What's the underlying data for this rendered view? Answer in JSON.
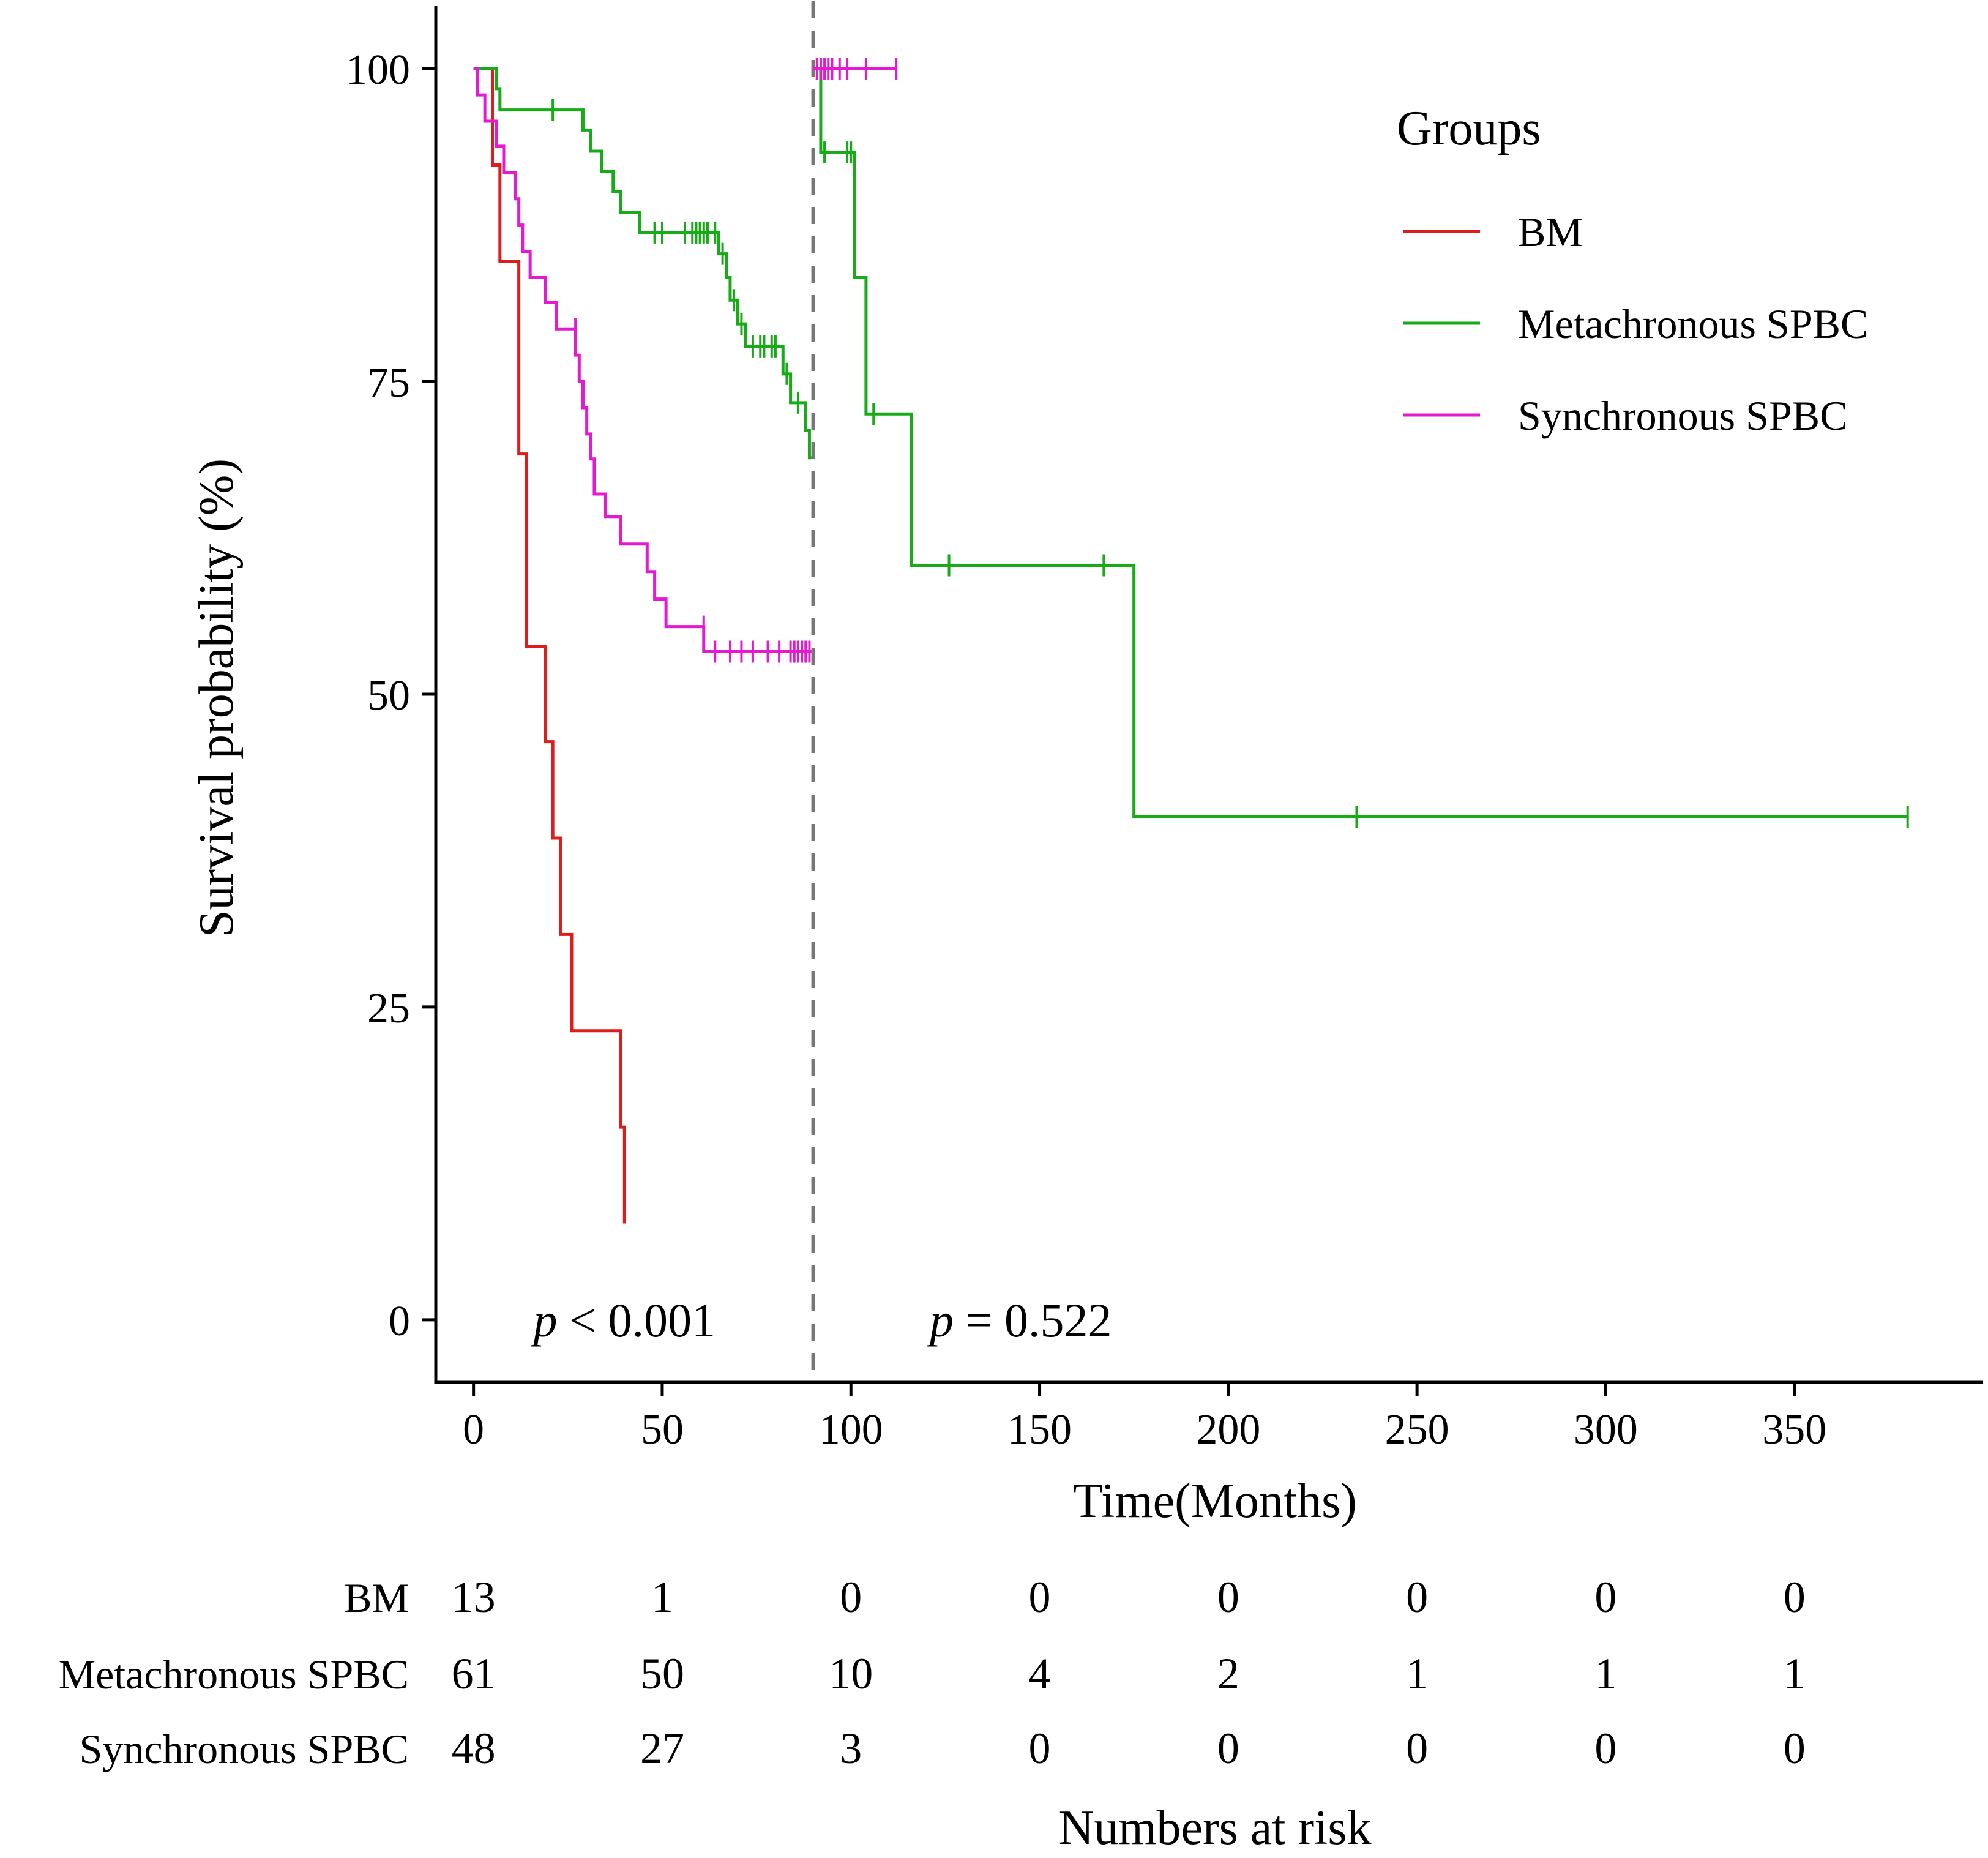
{
  "chart_data": {
    "type": "line",
    "subtype": "kaplan-meier",
    "xlabel": "Time(Months)",
    "ylabel": "Survival probability (%)",
    "xlim": [
      -10,
      400
    ],
    "ylim": [
      -5,
      105
    ],
    "x_ticks": [
      0,
      50,
      100,
      150,
      200,
      250,
      300,
      350
    ],
    "y_ticks": [
      0,
      25,
      50,
      75,
      100
    ],
    "x_tick_labels": [
      "0",
      "50",
      "100",
      "150",
      "200",
      "250",
      "300",
      "350"
    ],
    "y_tick_labels": [
      "0",
      "25",
      "50",
      "75",
      "100"
    ],
    "landmark_time": 90,
    "legend": {
      "title": "Groups",
      "position": "top-right"
    },
    "annotations": [
      {
        "prefix": "p",
        "text": " < 0.001",
        "x": 40,
        "y": 0
      },
      {
        "prefix": "p",
        "text": " = 0.522",
        "x": 145,
        "y": 0
      }
    ],
    "series": [
      {
        "name": "BM",
        "color": "#dd1c1c",
        "segments": [
          {
            "steps": [
              [
                0,
                100
              ],
              [
                5,
                92.3
              ],
              [
                7,
                84.6
              ],
              [
                12,
                69.2
              ],
              [
                14,
                53.8
              ],
              [
                19,
                46.2
              ],
              [
                21,
                38.5
              ],
              [
                23,
                30.8
              ],
              [
                26,
                23.1
              ],
              [
                39,
                15.4
              ],
              [
                40,
                7.7
              ]
            ],
            "end_x": 40,
            "censor": []
          }
        ]
      },
      {
        "name": "Metachronous SPBC",
        "color": "#17ac17",
        "segments": [
          {
            "steps": [
              [
                0,
                100
              ],
              [
                6,
                98.4
              ],
              [
                7,
                96.7
              ],
              [
                29,
                95.1
              ],
              [
                31,
                93.4
              ],
              [
                34,
                91.8
              ],
              [
                37,
                90.2
              ],
              [
                39,
                88.5
              ],
              [
                44,
                86.9
              ],
              [
                65,
                85.2
              ],
              [
                67,
                83.3
              ],
              [
                68,
                81.5
              ],
              [
                70,
                79.6
              ],
              [
                72,
                77.8
              ],
              [
                82,
                75.6
              ],
              [
                84,
                73.3
              ],
              [
                88,
                71.1
              ],
              [
                89,
                68.9
              ]
            ],
            "end_x": 89.5,
            "censor": [
              [
                21,
                96.7
              ],
              [
                48,
                86.9
              ],
              [
                50,
                86.9
              ],
              [
                56,
                86.9
              ],
              [
                58,
                86.9
              ],
              [
                59,
                86.9
              ],
              [
                60,
                86.9
              ],
              [
                61,
                86.9
              ],
              [
                62,
                86.9
              ],
              [
                64,
                86.9
              ],
              [
                66,
                85.2
              ],
              [
                69,
                81.5
              ],
              [
                71,
                79.6
              ],
              [
                74,
                77.8
              ],
              [
                76,
                77.8
              ],
              [
                77,
                77.8
              ],
              [
                79,
                77.8
              ],
              [
                80,
                77.8
              ],
              [
                83,
                75.6
              ],
              [
                86,
                73.3
              ]
            ]
          },
          {
            "steps": [
              [
                90,
                100
              ],
              [
                92,
                93.3
              ],
              [
                101,
                83.3
              ],
              [
                104,
                72.4
              ],
              [
                116,
                60.3
              ],
              [
                175,
                40.2
              ]
            ],
            "end_x": 380,
            "censor": [
              [
                93,
                93.3
              ],
              [
                99,
                93.3
              ],
              [
                100,
                93.3
              ],
              [
                106,
                72.4
              ],
              [
                126,
                60.3
              ],
              [
                167,
                60.3
              ],
              [
                234,
                40.2
              ],
              [
                380,
                40.2
              ]
            ]
          }
        ]
      },
      {
        "name": "Synchronous SPBC",
        "color": "#e619d2",
        "segments": [
          {
            "steps": [
              [
                0,
                100
              ],
              [
                1,
                97.9
              ],
              [
                3,
                95.8
              ],
              [
                6,
                93.8
              ],
              [
                8,
                91.7
              ],
              [
                11,
                89.6
              ],
              [
                12,
                87.5
              ],
              [
                13,
                85.4
              ],
              [
                15,
                83.3
              ],
              [
                19,
                81.3
              ],
              [
                22,
                79.2
              ],
              [
                27,
                77.1
              ],
              [
                28,
                75.0
              ],
              [
                29,
                72.9
              ],
              [
                30,
                70.8
              ],
              [
                31,
                68.8
              ],
              [
                32,
                66.0
              ],
              [
                35,
                64.2
              ],
              [
                39,
                62.0
              ],
              [
                46,
                59.8
              ],
              [
                48,
                57.6
              ],
              [
                51,
                55.4
              ],
              [
                61,
                53.4
              ]
            ],
            "end_x": 89.5,
            "censor": [
              [
                27,
                79.2
              ],
              [
                61,
                55.4
              ],
              [
                64,
                53.4
              ],
              [
                68,
                53.4
              ],
              [
                71,
                53.4
              ],
              [
                74,
                53.4
              ],
              [
                78,
                53.4
              ],
              [
                81,
                53.4
              ],
              [
                84,
                53.4
              ],
              [
                85,
                53.4
              ],
              [
                86,
                53.4
              ],
              [
                87,
                53.4
              ],
              [
                88,
                53.4
              ],
              [
                89,
                53.4
              ]
            ]
          },
          {
            "steps": [
              [
                90,
                100
              ]
            ],
            "end_x": 112,
            "censor": [
              [
                91,
                100
              ],
              [
                92,
                100
              ],
              [
                93,
                100
              ],
              [
                94,
                100
              ],
              [
                95,
                100
              ],
              [
                97,
                100
              ],
              [
                99,
                100
              ],
              [
                104,
                100
              ],
              [
                112,
                100
              ]
            ]
          }
        ]
      }
    ],
    "risk_table": {
      "title": "Numbers at risk",
      "times": [
        0,
        50,
        100,
        150,
        200,
        250,
        300,
        350
      ],
      "rows": [
        {
          "name": "BM",
          "values": [
            "13",
            "1",
            "0",
            "0",
            "0",
            "0",
            "0",
            "0"
          ]
        },
        {
          "name": "Metachronous SPBC",
          "values": [
            "61",
            "50",
            "10",
            "4",
            "2",
            "1",
            "1",
            "1"
          ]
        },
        {
          "name": "Synchronous SPBC",
          "values": [
            "48",
            "27",
            "3",
            "0",
            "0",
            "0",
            "0",
            "0"
          ]
        }
      ]
    }
  }
}
